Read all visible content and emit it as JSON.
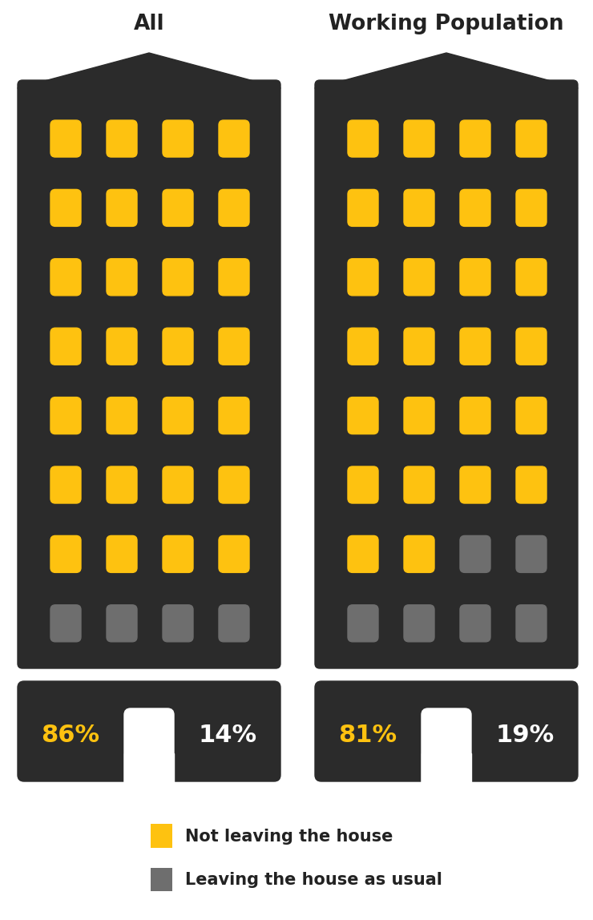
{
  "chart_data": {
    "type": "waffle",
    "categories": [
      "All",
      "Working Population"
    ],
    "series": [
      {
        "name": "Not leaving the house",
        "color": "#fec210",
        "values": [
          86,
          81
        ],
        "value_labels": [
          "86%",
          "81%"
        ]
      },
      {
        "name": "Leaving the house as usual",
        "color": "#6e6e6e",
        "values": [
          14,
          19
        ],
        "value_labels": [
          "14%",
          "19%"
        ]
      }
    ],
    "legend": "lower center"
  }
}
